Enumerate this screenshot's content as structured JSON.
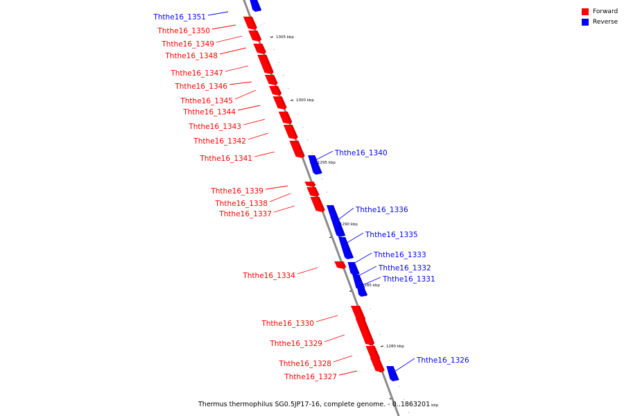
{
  "colors": {
    "forward": "#ff0000",
    "reverse": "#0000ff",
    "backbone": "#8a8a8a",
    "tick": "#000000"
  },
  "legend": [
    {
      "label": "Forward",
      "color": "#ff0000"
    },
    {
      "label": "Reverse",
      "color": "#0000ff"
    }
  ],
  "footer": {
    "text": "Thermus thermophilus SG0.5JP17-16, complete genome. - 0..1863201",
    "unit": "kbp"
  },
  "scale_labels": [
    "1305 kbp",
    "1300 kbp",
    "1295 kbp",
    "1290 kbp",
    "1285 kbp",
    "1280 kbp"
  ],
  "genes": [
    {
      "name": "Ththe16_1351",
      "strand": "reverse"
    },
    {
      "name": "Ththe16_1350",
      "strand": "forward"
    },
    {
      "name": "Ththe16_1349",
      "strand": "forward"
    },
    {
      "name": "Ththe16_1348",
      "strand": "forward"
    },
    {
      "name": "Ththe16_1347",
      "strand": "forward"
    },
    {
      "name": "Ththe16_1346",
      "strand": "forward"
    },
    {
      "name": "Ththe16_1345",
      "strand": "forward"
    },
    {
      "name": "Ththe16_1344",
      "strand": "forward"
    },
    {
      "name": "Ththe16_1343",
      "strand": "forward"
    },
    {
      "name": "Ththe16_1342",
      "strand": "forward"
    },
    {
      "name": "Ththe16_1341",
      "strand": "forward"
    },
    {
      "name": "Ththe16_1340",
      "strand": "reverse"
    },
    {
      "name": "Ththe16_1339",
      "strand": "forward"
    },
    {
      "name": "Ththe16_1338",
      "strand": "forward"
    },
    {
      "name": "Ththe16_1337",
      "strand": "forward"
    },
    {
      "name": "Ththe16_1336",
      "strand": "reverse"
    },
    {
      "name": "Ththe16_1335",
      "strand": "reverse"
    },
    {
      "name": "Ththe16_1334",
      "strand": "forward"
    },
    {
      "name": "Ththe16_1333",
      "strand": "reverse"
    },
    {
      "name": "Ththe16_1332",
      "strand": "reverse"
    },
    {
      "name": "Ththe16_1331",
      "strand": "reverse"
    },
    {
      "name": "Ththe16_1330",
      "strand": "forward"
    },
    {
      "name": "Ththe16_1329",
      "strand": "forward"
    },
    {
      "name": "Ththe16_1328",
      "strand": "forward"
    },
    {
      "name": "Ththe16_1327",
      "strand": "forward"
    },
    {
      "name": "Ththe16_1326",
      "strand": "reverse"
    }
  ]
}
